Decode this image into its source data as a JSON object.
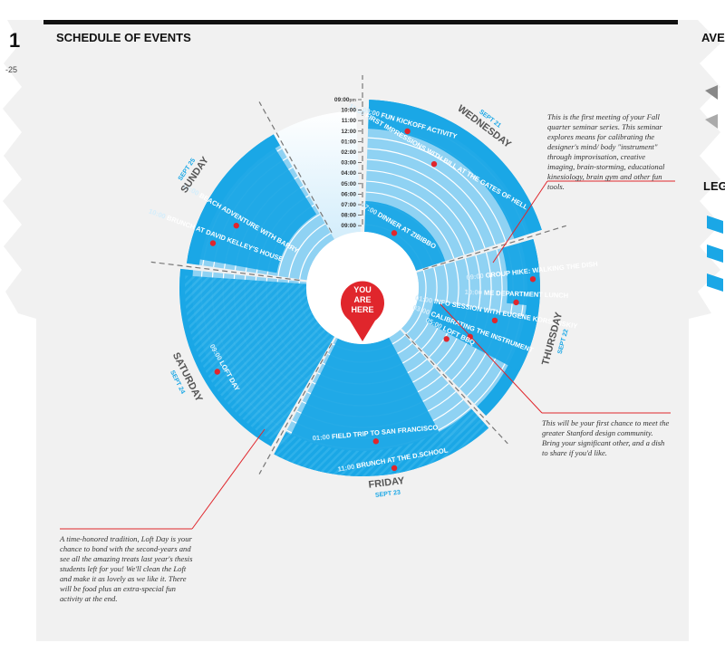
{
  "header": {
    "title": "SCHEDULE OF EVENTS",
    "left_fragment": "1",
    "left_sub_fragment": "-25",
    "right_fragment": "AVE",
    "right_sub_fragment": "LEG"
  },
  "you_are_here": [
    "YOU",
    "ARE",
    "HERE"
  ],
  "time_scale": [
    "09:00",
    "10:00",
    "11:00",
    "12:00",
    "01:00",
    "02:00",
    "03:00",
    "04:00",
    "05:00",
    "06:00",
    "07:00",
    "08:00",
    "09:00"
  ],
  "time_suffix": "pm",
  "days": [
    {
      "day": "WEDNESDAY",
      "date": "SEPT 21"
    },
    {
      "day": "THURSDAY",
      "date": "SEPT 22"
    },
    {
      "day": "FRIDAY",
      "date": "SEPT 23"
    },
    {
      "day": "SATURDAY",
      "date": "SEPT 24"
    },
    {
      "day": "SUNDAY",
      "date": "SEPT 25"
    }
  ],
  "events": [
    {
      "time": "09:00",
      "name": "FUN KICKOFF ACTIVITY"
    },
    {
      "time": "11:00",
      "name": "FIRST IMPRESSIONS WITH BILL AT THE GATES OF HELL"
    },
    {
      "time": "07:00",
      "name": "DINNER AT ZIBIBBO"
    },
    {
      "time": "09:00",
      "name": "GROUP HIKE: WALKING THE DISH"
    },
    {
      "time": "10:00",
      "name": "ME DEPARTMENT LUNCH"
    },
    {
      "time": "01:00",
      "name": "INFO SESSION WITH EUGENE KORSUNSKIY"
    },
    {
      "time": "03:00",
      "name": "CALIBRATING THE INSTRUMENT"
    },
    {
      "time": "05:00",
      "name": "LOFT BBQ"
    },
    {
      "time": "11:00",
      "name": "BRUNCH AT THE D.SCHOOL"
    },
    {
      "time": "01:00",
      "name": "FIELD TRIP TO SAN FRANCISCO"
    },
    {
      "time": "09:00",
      "name": "LOFT DAY"
    },
    {
      "time": "10:00",
      "name": "BRUNCH AT DAVID KELLEY'S HOUSE"
    },
    {
      "time": "12:00",
      "name": "BEACH ADVENTURE WITH BARRY"
    }
  ],
  "notes": {
    "seminar": "This is the first meeting of your Fall quarter seminar series. This seminar explores means for calibrating the designer's mind/ body \"instrument\" through improvisation, creative imaging, brain-storming, educational kinesiology, brain gym and other fun tools.",
    "bbq": "This will be your first chance to meet the greater Stanford design community. Bring your significant other, and a dish to share if you'd like.",
    "loft_day": "A time-honored tradition, Loft Day is your chance to bond with the second-years and see all the amazing treats last year's thesis students left for you! We'll clean the Loft and make it as lovely as we like it. There will be food plus an extra-special fun activity at the end."
  },
  "colors": {
    "primary": "#1aa7e6",
    "light": "#8fd2f3",
    "pale": "#d3edfb",
    "accent": "#e0262c",
    "ink": "#111111",
    "paper": "#f1f1f1"
  }
}
